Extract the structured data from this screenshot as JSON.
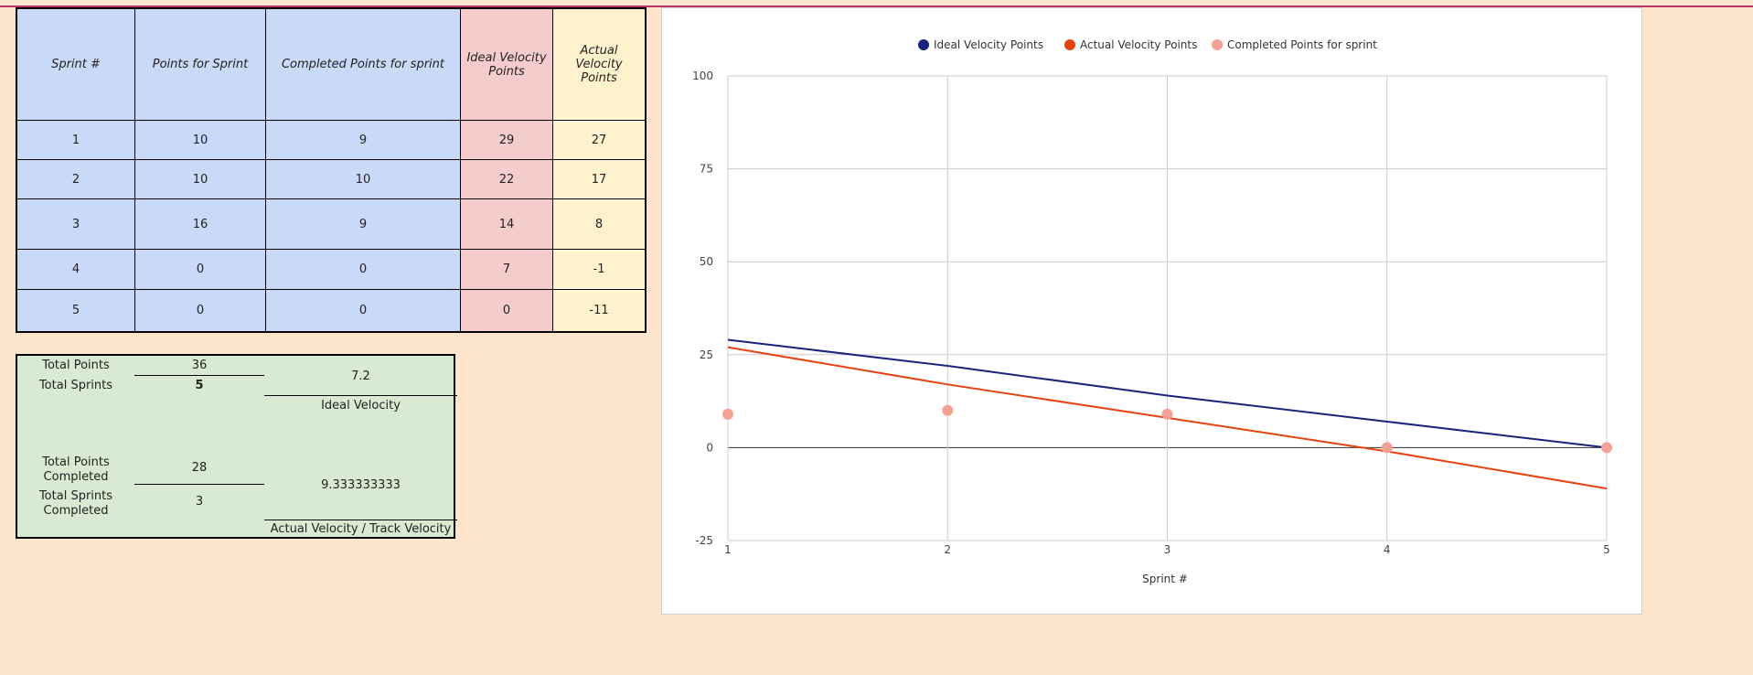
{
  "table": {
    "headers": [
      "Sprint #",
      "Points for Sprint",
      "Completed Points for sprint",
      "Ideal Velocity Points",
      "Actual Velocity Points"
    ],
    "rows": [
      [
        "1",
        "10",
        "9",
        "29",
        "27"
      ],
      [
        "2",
        "10",
        "10",
        "22",
        "17"
      ],
      [
        "3",
        "16",
        "9",
        "14",
        "8"
      ],
      [
        "4",
        "0",
        "0",
        "7",
        "-1"
      ],
      [
        "5",
        "0",
        "0",
        "0",
        "-11"
      ]
    ]
  },
  "summary": {
    "total_points_label": "Total Points",
    "total_points": "36",
    "total_sprints_label": "Total Sprints",
    "total_sprints": "5",
    "ideal_velocity_value": "7.2",
    "ideal_velocity_label": "Ideal Velocity",
    "total_points_completed_label": "Total Points Completed",
    "total_points_completed": "28",
    "total_sprints_completed_label": "Total Sprints Completed",
    "total_sprints_completed": "3",
    "actual_velocity_value": "9.333333333",
    "actual_velocity_label": "Actual Velocity / Track Velocity"
  },
  "chart_data": {
    "type": "line",
    "title": "",
    "xlabel": "Sprint #",
    "ylabel": "",
    "x": [
      1,
      2,
      3,
      4,
      5
    ],
    "xlim": [
      1,
      5
    ],
    "ylim": [
      -25,
      100
    ],
    "yticks": [
      -25,
      0,
      25,
      50,
      75,
      100
    ],
    "grid": true,
    "legend": "top-center",
    "series": [
      {
        "name": "Ideal Velocity Points",
        "type": "line",
        "color": "#1a237e",
        "values": [
          29,
          22,
          14,
          7,
          0
        ]
      },
      {
        "name": "Actual Velocity Points",
        "type": "line",
        "color": "#e8430f",
        "values": [
          27,
          17,
          8,
          -1,
          -11
        ]
      },
      {
        "name": "Completed Points for sprint",
        "type": "scatter",
        "color": "#f4a193",
        "values": [
          9,
          10,
          9,
          0,
          0
        ]
      }
    ]
  }
}
